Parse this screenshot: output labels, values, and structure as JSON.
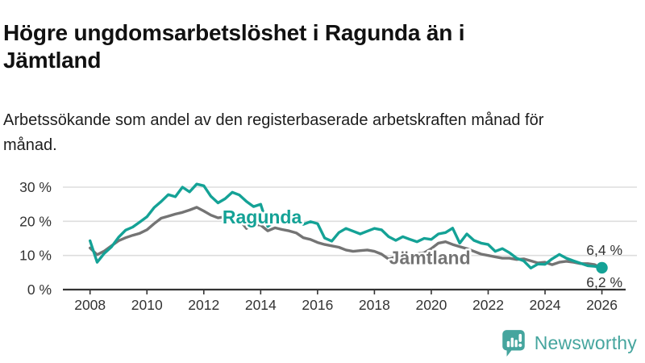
{
  "header": {
    "title": "Högre ungdomsarbetslöshet i Ragunda än i Jämtland",
    "subtitle": "Arbetssökande som andel av den registerbaserade arbetskraften månad för månad."
  },
  "chart_data": {
    "type": "line",
    "title": "Högre ungdomsarbetslöshet i Ragunda än i Jämtland",
    "xlabel": "",
    "ylabel": "Arbetssökande som andel av den registerbaserade arbetskraften",
    "grid": "horizontal-only",
    "legend_position": "inline-series-labels",
    "xlim": [
      2008,
      2026
    ],
    "ylim": [
      0,
      33
    ],
    "x_ticks": [
      2008,
      2010,
      2012,
      2014,
      2016,
      2018,
      2020,
      2022,
      2024,
      2026
    ],
    "x_tick_labels": [
      "2008",
      "2010",
      "2012",
      "2014",
      "2016",
      "2018",
      "2020",
      "2022",
      "2024",
      "2026"
    ],
    "y_ticks": [
      0,
      10,
      20,
      30
    ],
    "y_tick_labels": [
      "0 %",
      "10 %",
      "20 %",
      "30 %"
    ],
    "axis_color": "#333333",
    "grid_color": "#dddddd",
    "tick_label_color": "#333333",
    "x": [
      2008.0,
      2008.25,
      2008.5,
      2008.75,
      2009.0,
      2009.25,
      2009.5,
      2009.75,
      2010.0,
      2010.25,
      2010.5,
      2010.75,
      2011.0,
      2011.25,
      2011.5,
      2011.75,
      2012.0,
      2012.25,
      2012.5,
      2012.75,
      2013.0,
      2013.25,
      2013.5,
      2013.75,
      2014.0,
      2014.25,
      2014.5,
      2014.75,
      2015.0,
      2015.25,
      2015.5,
      2015.75,
      2016.0,
      2016.25,
      2016.5,
      2016.75,
      2017.0,
      2017.25,
      2017.5,
      2017.75,
      2018.0,
      2018.25,
      2018.5,
      2018.75,
      2019.0,
      2019.25,
      2019.5,
      2019.75,
      2020.0,
      2020.25,
      2020.5,
      2020.75,
      2021.0,
      2021.25,
      2021.5,
      2021.75,
      2022.0,
      2022.25,
      2022.5,
      2022.75,
      2023.0,
      2023.25,
      2023.5,
      2023.75,
      2024.0,
      2024.25,
      2024.5,
      2024.75,
      2025.0,
      2025.25,
      2025.5,
      2025.75,
      2026.0
    ],
    "series": [
      {
        "name": "Jämtland",
        "color": "#747474",
        "end_label": "6,2 %",
        "end_value": 6.2,
        "end_dot_radius": 4.5,
        "label_pos": {
          "x": 2019.95,
          "y": 7.5
        },
        "values": [
          12.2,
          10.2,
          11.3,
          12.8,
          14.3,
          15.2,
          15.9,
          16.5,
          17.5,
          19.3,
          20.9,
          21.5,
          22.1,
          22.6,
          23.3,
          24.1,
          23.0,
          21.8,
          21.0,
          21.3,
          20.3,
          20.5,
          17.9,
          19.1,
          18.9,
          17.2,
          18.1,
          17.6,
          17.2,
          16.6,
          15.2,
          14.7,
          13.8,
          13.2,
          12.8,
          12.4,
          11.6,
          11.2,
          11.4,
          11.6,
          11.2,
          10.4,
          8.9,
          9.6,
          10.2,
          10.4,
          10.5,
          10.8,
          12.0,
          13.6,
          14.0,
          13.2,
          12.6,
          12.0,
          11.2,
          10.4,
          10.0,
          9.6,
          9.2,
          9.2,
          8.8,
          9.0,
          8.4,
          7.8,
          8.0,
          7.3,
          8.0,
          8.3,
          8.0,
          7.6,
          7.6,
          7.3,
          6.2
        ]
      },
      {
        "name": "Ragunda",
        "color": "#14a296",
        "end_label": "6,4 %",
        "end_value": 6.4,
        "end_dot_radius": 7.2,
        "label_pos": {
          "x": 2014.05,
          "y": 19.4
        },
        "values": [
          14.3,
          8.0,
          10.6,
          12.5,
          15.3,
          17.4,
          18.3,
          19.8,
          21.3,
          24.0,
          25.8,
          27.8,
          27.2,
          30.0,
          28.6,
          30.9,
          30.4,
          27.3,
          25.4,
          26.6,
          28.5,
          27.7,
          25.8,
          24.3,
          25.0,
          18.5,
          20.0,
          20.6,
          20.1,
          20.6,
          19.1,
          19.9,
          19.3,
          15.1,
          14.2,
          16.7,
          17.9,
          17.1,
          16.3,
          17.1,
          17.9,
          17.5,
          15.5,
          14.4,
          15.5,
          14.7,
          14.0,
          15.0,
          14.7,
          16.3,
          16.7,
          18.0,
          13.6,
          16.3,
          14.4,
          13.6,
          13.2,
          11.2,
          12.0,
          10.8,
          9.2,
          8.4,
          6.3,
          7.5,
          7.4,
          9.0,
          10.3,
          9.2,
          8.4,
          7.7,
          7.0,
          6.8,
          6.4
        ]
      }
    ]
  },
  "footer": {
    "brand": "Newsworthy",
    "brand_color": "#45a59e",
    "logo_icon": "bar-chart-speech-bubble-icon"
  }
}
